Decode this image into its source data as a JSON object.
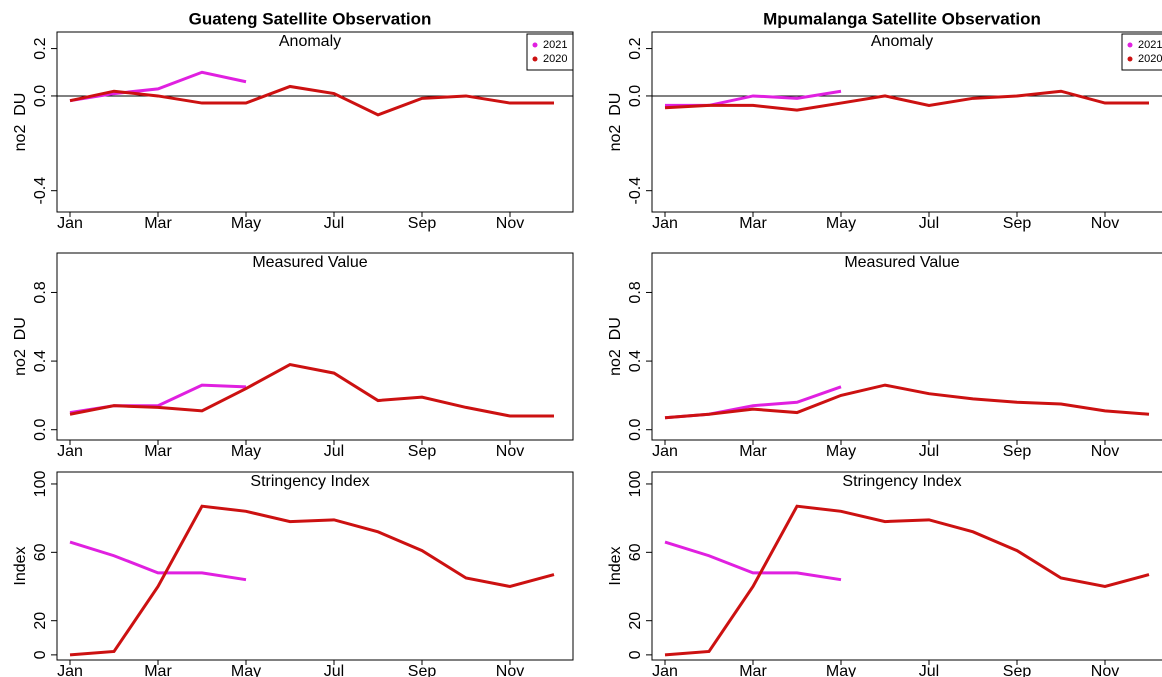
{
  "chart_data": [
    {
      "type": "line",
      "title": "Guateng Satellite Observation",
      "subtitle": "Anomaly",
      "ylabel": "no2  DU",
      "categories": [
        "Jan",
        null,
        "Mar",
        null,
        "May",
        null,
        "Jul",
        null,
        "Sep",
        null,
        "Nov",
        null
      ],
      "series": [
        {
          "name": "2021",
          "color": "#e020e0",
          "values": [
            -0.02,
            0.01,
            0.03,
            0.1,
            0.06,
            null,
            null,
            null,
            null,
            null,
            null,
            null
          ]
        },
        {
          "name": "2020",
          "color": "#cc1111",
          "values": [
            -0.02,
            0.02,
            0.0,
            -0.03,
            -0.03,
            0.04,
            0.01,
            -0.08,
            -0.01,
            0.0,
            -0.03,
            -0.03
          ]
        }
      ],
      "ylim": [
        -0.49,
        0.27
      ],
      "yticks": [
        -0.4,
        {
          "value": 0,
          "label": "0.0"
        },
        0.2
      ],
      "hline": 0,
      "legend": "top-right"
    },
    {
      "type": "line",
      "title": "Mpumalanga Satellite Observation",
      "subtitle": "Anomaly",
      "ylabel": "no2  DU",
      "categories": [
        "Jan",
        null,
        "Mar",
        null,
        "May",
        null,
        "Jul",
        null,
        "Sep",
        null,
        "Nov",
        null
      ],
      "series": [
        {
          "name": "2021",
          "color": "#e020e0",
          "values": [
            -0.04,
            -0.04,
            0.0,
            -0.01,
            0.02,
            null,
            null,
            null,
            null,
            null,
            null,
            null
          ]
        },
        {
          "name": "2020",
          "color": "#cc1111",
          "values": [
            -0.05,
            -0.04,
            -0.04,
            -0.06,
            -0.03,
            0.0,
            -0.04,
            -0.01,
            0.0,
            0.02,
            -0.03,
            -0.03
          ]
        }
      ],
      "ylim": [
        -0.49,
        0.27
      ],
      "yticks": [
        -0.4,
        {
          "value": 0,
          "label": "0.0"
        },
        0.2
      ],
      "hline": 0,
      "legend": "top-right"
    },
    {
      "type": "line",
      "subtitle": "Measured Value",
      "ylabel": "no2  DU",
      "categories": [
        "Jan",
        null,
        "Mar",
        null,
        "May",
        null,
        "Jul",
        null,
        "Sep",
        null,
        "Nov",
        null
      ],
      "series": [
        {
          "name": "2021",
          "color": "#e020e0",
          "values": [
            0.1,
            0.14,
            0.14,
            0.26,
            0.25,
            null,
            null,
            null,
            null,
            null,
            null,
            null
          ]
        },
        {
          "name": "2020",
          "color": "#cc1111",
          "values": [
            0.09,
            0.14,
            0.13,
            0.11,
            0.24,
            0.38,
            0.33,
            0.17,
            0.19,
            0.13,
            0.08,
            0.08
          ]
        }
      ],
      "ylim": [
        -0.06,
        1.03
      ],
      "yticks": [
        {
          "value": 0,
          "label": "0.0"
        },
        0.4,
        0.8
      ]
    },
    {
      "type": "line",
      "subtitle": "Measured Value",
      "ylabel": "no2  DU",
      "categories": [
        "Jan",
        null,
        "Mar",
        null,
        "May",
        null,
        "Jul",
        null,
        "Sep",
        null,
        "Nov",
        null
      ],
      "series": [
        {
          "name": "2021",
          "color": "#e020e0",
          "values": [
            0.07,
            0.09,
            0.14,
            0.16,
            0.25,
            null,
            null,
            null,
            null,
            null,
            null,
            null
          ]
        },
        {
          "name": "2020",
          "color": "#cc1111",
          "values": [
            0.07,
            0.09,
            0.12,
            0.1,
            0.2,
            0.26,
            0.21,
            0.18,
            0.16,
            0.15,
            0.11,
            0.09
          ]
        }
      ],
      "ylim": [
        -0.06,
        1.03
      ],
      "yticks": [
        {
          "value": 0,
          "label": "0.0"
        },
        0.4,
        0.8
      ]
    },
    {
      "type": "line",
      "subtitle": "Stringency Index",
      "ylabel": "Index",
      "categories": [
        "Jan",
        null,
        "Mar",
        null,
        "May",
        null,
        "Jul",
        null,
        "Sep",
        null,
        "Nov",
        null
      ],
      "series": [
        {
          "name": "2021",
          "color": "#e020e0",
          "values": [
            66,
            58,
            48,
            48,
            44,
            null,
            null,
            null,
            null,
            null,
            null,
            null
          ]
        },
        {
          "name": "2020",
          "color": "#cc1111",
          "values": [
            0,
            2,
            40,
            87,
            84,
            78,
            79,
            72,
            61,
            45,
            40,
            47
          ]
        }
      ],
      "ylim": [
        -3,
        107
      ],
      "yticks": [
        0,
        20,
        60,
        100
      ]
    },
    {
      "type": "line",
      "subtitle": "Stringency Index",
      "ylabel": "Index",
      "categories": [
        "Jan",
        null,
        "Mar",
        null,
        "May",
        null,
        "Jul",
        null,
        "Sep",
        null,
        "Nov",
        null
      ],
      "series": [
        {
          "name": "2021",
          "color": "#e020e0",
          "values": [
            66,
            58,
            48,
            48,
            44,
            null,
            null,
            null,
            null,
            null,
            null,
            null
          ]
        },
        {
          "name": "2020",
          "color": "#cc1111",
          "values": [
            0,
            2,
            40,
            87,
            84,
            78,
            79,
            72,
            61,
            45,
            40,
            47
          ]
        }
      ],
      "ylim": [
        -3,
        107
      ],
      "yticks": [
        0,
        20,
        60,
        100
      ]
    }
  ]
}
